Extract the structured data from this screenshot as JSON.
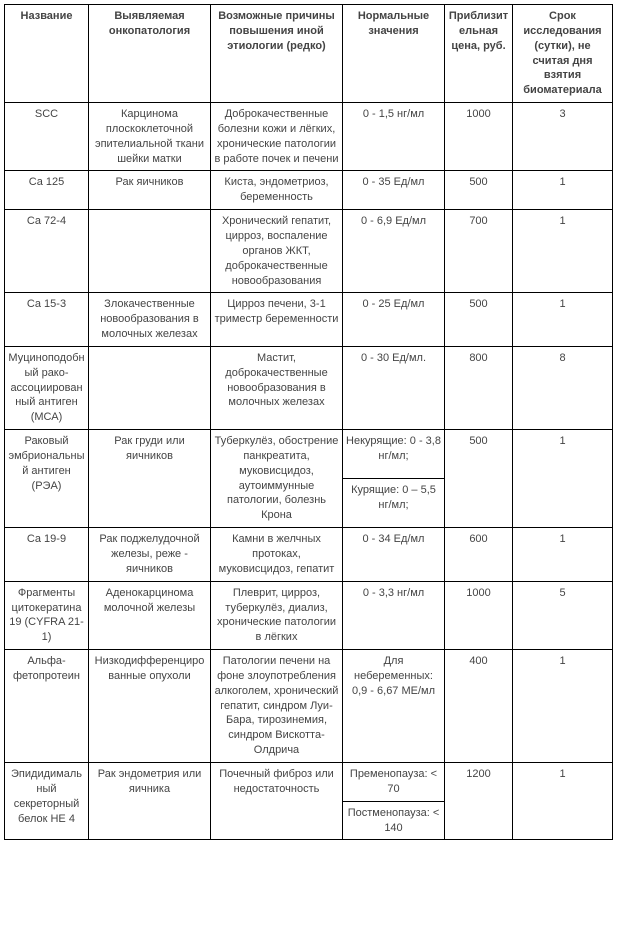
{
  "headers": {
    "name": "Название",
    "pathology": "Выявляемая онкопатология",
    "causes": "Возможные причины повышения иной этиологии (редко)",
    "normal": "Нормальные значения",
    "price": "Приблизительная цена, руб.",
    "days": "Срок исследования (сутки), не считая дня взятия биоматериала"
  },
  "rows": [
    {
      "name": "SCC",
      "pathology": "Карцинома плоскоклеточной эпителиальной ткани шейки матки",
      "causes": "Доброкачественные болезни кожи и лёгких, хронические патологии в работе почек и печени",
      "normal": "0 - 1,5 нг/мл",
      "price": "1000",
      "days": "3"
    },
    {
      "name": "Ca 125",
      "pathology": "Рак яичников",
      "causes": "Киста, эндометриоз, беременность",
      "normal": "0 - 35 Ед/мл",
      "price": "500",
      "days": "1"
    },
    {
      "name": "Ca 72-4",
      "pathology": "",
      "causes": "Хронический гепатит, цирроз, воспаление органов ЖКТ, доброкачественные новообразования",
      "normal": "0 - 6,9 Ед/мл",
      "price": "700",
      "days": "1"
    },
    {
      "name": "Ca 15-3",
      "pathology": "Злокачественные новообразования в молочных железах",
      "causes": "Цирроз печени, 3-1 триместр беременности",
      "normal": "0 - 25 Ед/мл",
      "price": "500",
      "days": "1"
    },
    {
      "name": "Муциноподобный рако-ассоциированный антиген (МСА)",
      "pathology": "",
      "causes": "Мастит, доброкачественные новообразования в молочных железах",
      "normal": "0 - 30 Ед/мл.",
      "price": "800",
      "days": "8"
    },
    {
      "name": "Раковый эмбриональный антиген (РЭА)",
      "pathology": "Рак груди или яичников",
      "causes": "Туберкулёз, обострение панкреатита, муковисцидоз, аутоиммунные патологии, болезнь Крона",
      "normal": [
        "Некурящие: 0 - 3,8 нг/мл;",
        "Курящие: 0 – 5,5 нг/мл;"
      ],
      "price": "500",
      "days": "1",
      "multiNormal": true
    },
    {
      "name": "Ca 19-9",
      "pathology": "Рак поджелудочной железы, реже - яичников",
      "causes": "Камни в желчных протоках, муковисцидоз, гепатит",
      "normal": "0 - 34 Ед/мл",
      "price": "600",
      "days": "1"
    },
    {
      "name": "Фрагменты цитокератина 19 (CYFRA 21-1)",
      "pathology": "Аденокарцинома молочной железы",
      "causes": "Плеврит, цирроз, туберкулёз, диализ, хронические патологии в лёгких",
      "normal": "0 - 3,3 нг/мл",
      "price": "1000",
      "days": "5"
    },
    {
      "name": "Альфа-фетопротеин",
      "pathology": "Низкодифференцированные опухоли",
      "causes": "Патологии печени на фоне злоупотребления алкоголем, хронический гепатит, синдром Луи-Бара, тирозинемия, синдром Вискотта-Олдрича",
      "normal": "Для небеременных: 0,9 - 6,67 МЕ/мл",
      "price": "400",
      "days": "1"
    },
    {
      "name": "Эпидидимальный секреторный белок НЕ 4",
      "pathology": "Рак эндометрия или яичника",
      "causes": "Почечный фиброз или недостаточность",
      "normal": [
        "Пременопауза: < 70",
        "Постменопауза: < 140"
      ],
      "price": "1200",
      "days": "1",
      "multiNormal": true
    }
  ]
}
